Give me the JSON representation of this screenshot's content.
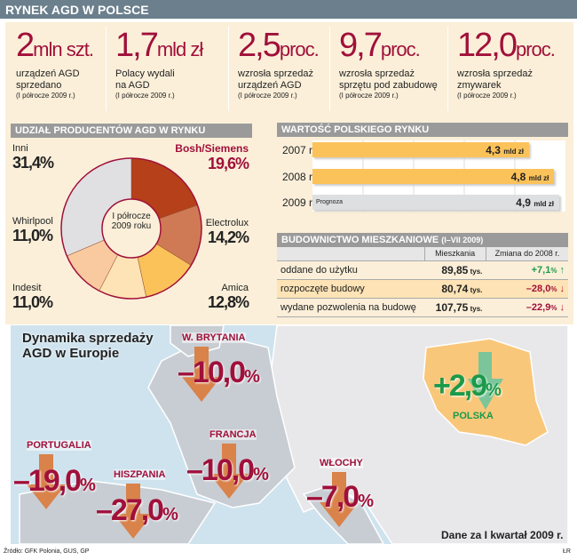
{
  "header": {
    "title": "RYNEK AGD W POLSCE"
  },
  "stats": [
    {
      "value": "2",
      "unit": "mln szt.",
      "desc": "urządzeń AGD\nsprzedano",
      "note": "(I półrocze 2009 r.)"
    },
    {
      "value": "1,7",
      "unit": "mld zł",
      "desc": "Polacy wydali\nna AGD",
      "note": "(I półrocze 2009 r.)"
    },
    {
      "value": "2,5",
      "unit": "proc.",
      "desc": "wzrosła sprzedaż\nurządzeń AGD",
      "note": "(I półrocze 2009 r.)"
    },
    {
      "value": "9,7",
      "unit": "proc.",
      "desc": "wzrosła sprzedaż\nsprzętu pod zabudowę",
      "note": "(I półrocze 2009 r.)"
    },
    {
      "value": "12,0",
      "unit": "proc.",
      "desc": "wzrosła sprzedaż\nzmywarek",
      "note": "(I półrocze 2009 r.)"
    }
  ],
  "chart_data": [
    {
      "type": "pie",
      "title": "UDZIAŁ PRODUCENTÓW AGD W RYNKU",
      "center_label": "I półrocze\n2009 roku",
      "categories": [
        "Bosh/Siemens",
        "Electrolux",
        "Amica",
        "Indesit",
        "Whirlpool",
        "Inni"
      ],
      "values": [
        19.6,
        14.2,
        12.8,
        11.0,
        11.0,
        31.4
      ],
      "labels": [
        "19,6%",
        "14,2%",
        "12,8%",
        "11,0%",
        "11,0%",
        "31,4%"
      ],
      "colors": [
        "#b5401a",
        "#cf7a55",
        "#fbc25a",
        "#fde3b5",
        "#f9c9a0",
        "#e0e0e2"
      ]
    },
    {
      "type": "bar",
      "orientation": "horizontal",
      "title": "WARTOŚĆ POLSKIEGO RYNKU",
      "categories": [
        "2007 r.",
        "2008 r.",
        "2009 r."
      ],
      "values": [
        4.3,
        4.8,
        4.9
      ],
      "labels": [
        "4,3",
        "4,8",
        "4,9"
      ],
      "unit": "mld zł",
      "annotation": "Prognoza",
      "forecast": [
        false,
        false,
        true
      ]
    }
  ],
  "housing": {
    "title": "BUDOWNICTWO MIESZKANIOWE",
    "period": "(I–VII 2009)",
    "columns": [
      "",
      "Mieszkania",
      "Zmiana do 2008 r."
    ],
    "rows": [
      {
        "label": "oddane do użytku",
        "value": "89,85",
        "unit": "tys.",
        "change": "+7,1",
        "trend": "up"
      },
      {
        "label": "rozpoczęte budowy",
        "value": "80,74",
        "unit": "tys.",
        "change": "–28,0",
        "trend": "down"
      },
      {
        "label": "wydane pozwolenia na budowę",
        "value": "107,75",
        "unit": "tys.",
        "change": "–22,9",
        "trend": "down"
      }
    ]
  },
  "map": {
    "title": "Dynamika sprzedaży\nAGD w Europie",
    "note": "Dane za I kwartał 2009 r.",
    "countries": [
      {
        "name": "W. BRYTANIA",
        "value": "–10,0"
      },
      {
        "name": "FRANCJA",
        "value": "–10,0"
      },
      {
        "name": "PORTUGALIA",
        "value": "–19,0"
      },
      {
        "name": "HISZPANIA",
        "value": "–27,0"
      },
      {
        "name": "WŁOCHY",
        "value": "–7,0"
      },
      {
        "name": "POLSKA",
        "value": "+2,9"
      }
    ]
  },
  "footer": {
    "source": "Źródło: GFK Polonia, GUS, GP",
    "author": "ŁR"
  }
}
